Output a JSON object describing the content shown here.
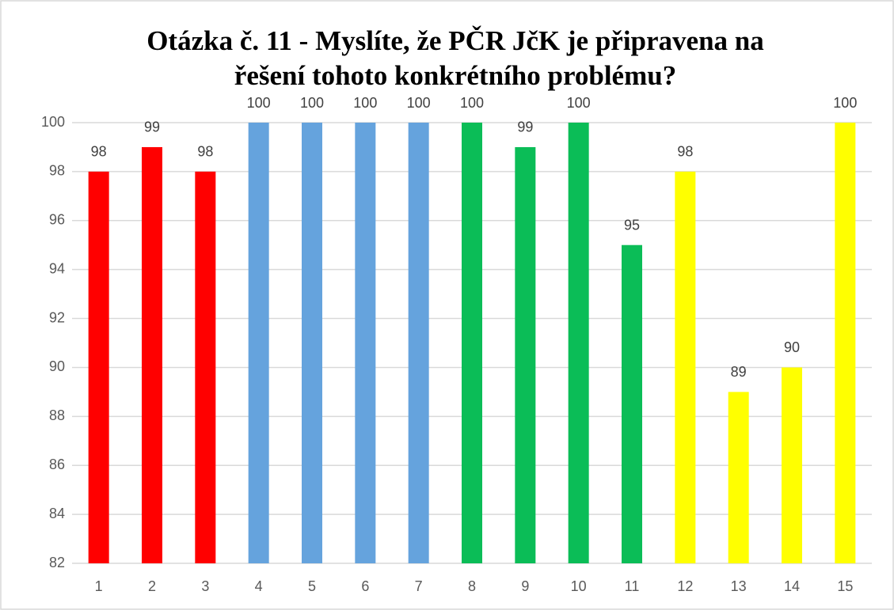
{
  "chart_data": {
    "type": "bar",
    "title": [
      "Otázka č. 11 - Myslíte, že PČR JčK je připravena na",
      "řešení tohoto konkrétního problému?"
    ],
    "categories": [
      "1",
      "2",
      "3",
      "4",
      "5",
      "6",
      "7",
      "8",
      "9",
      "10",
      "11",
      "12",
      "13",
      "14",
      "15"
    ],
    "values": [
      98,
      99,
      98,
      100,
      100,
      100,
      100,
      100,
      99,
      100,
      95,
      98,
      89,
      90,
      100
    ],
    "colors": [
      "#ff0000",
      "#ff0000",
      "#ff0000",
      "#65a3dd",
      "#65a3dd",
      "#65a3dd",
      "#65a3dd",
      "#0bbd57",
      "#0bbd57",
      "#0bbd57",
      "#0bbd57",
      "#ffff00",
      "#ffff00",
      "#ffff00",
      "#ffff00"
    ],
    "ylim": [
      82,
      100
    ],
    "yticks": [
      82,
      84,
      86,
      88,
      90,
      92,
      94,
      96,
      98,
      100
    ],
    "grid": true
  }
}
